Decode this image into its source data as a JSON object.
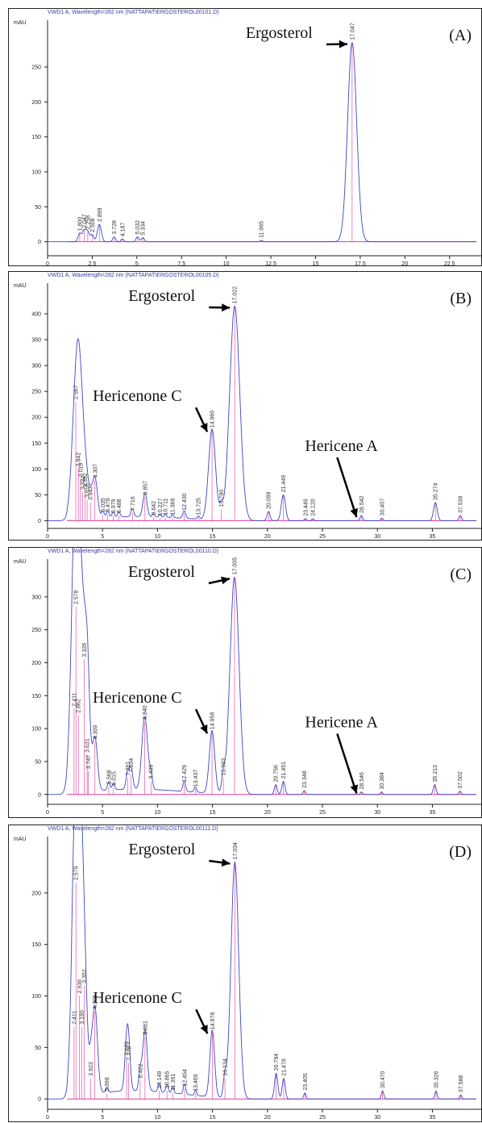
{
  "panels": [
    {
      "label": "(A)",
      "header": "VWD1 A, Wavelength=282 nm (NATTAPAT\\ERGOSTEROL00101.D)",
      "ylabel": "mAU",
      "xlim": [
        0,
        24
      ],
      "ylim": [
        -20,
        310
      ],
      "yticks": [
        0,
        50,
        100,
        150,
        200,
        250
      ],
      "xticks": [
        "0",
        "2.5",
        "5",
        "7.5",
        "10",
        "12.5",
        "15",
        "17.5",
        "20",
        "22.5"
      ],
      "xtick_values": [
        0,
        2.5,
        5,
        7.5,
        10,
        12.5,
        15,
        17.5,
        20,
        22.5
      ],
      "peaks": [
        {
          "x": 1.8,
          "h": 12,
          "label": "1.800"
        },
        {
          "x": 2.05,
          "h": 16,
          "label": "2.047"
        },
        {
          "x": 2.25,
          "h": 14,
          "label": "2.258"
        },
        {
          "x": 2.5,
          "h": 10,
          "label": "2.508"
        },
        {
          "x": 2.899,
          "h": 25,
          "label": "2.899"
        },
        {
          "x": 3.728,
          "h": 7,
          "label": "3.728"
        },
        {
          "x": 4.187,
          "h": 4,
          "label": "4.187"
        },
        {
          "x": 5.032,
          "h": 7,
          "label": "5.032"
        },
        {
          "x": 5.334,
          "h": 6,
          "label": "5.334"
        },
        {
          "x": 11.965,
          "h": 2,
          "label": "11.965"
        },
        {
          "x": 17.047,
          "h": 285,
          "label": "17.047"
        }
      ],
      "annotations": [
        {
          "text": "Ergosterol",
          "x": 17.047
        }
      ]
    },
    {
      "label": "(B)",
      "header": "VWD1 A, Wavelength=282 nm (NATTAPAT\\ERGOSTEROL00105.D)",
      "ylabel": "mAU",
      "xlim": [
        0,
        39
      ],
      "ylim": [
        -15,
        450
      ],
      "yticks": [
        0,
        50,
        100,
        150,
        200,
        250,
        300,
        350,
        400
      ],
      "xticks": [
        "0",
        "5",
        "10",
        "15",
        "20",
        "25",
        "30",
        "35"
      ],
      "xtick_values": [
        0,
        5,
        10,
        15,
        20,
        25,
        30,
        35
      ],
      "peaks": [
        {
          "x": 2.567,
          "h": 230,
          "label": "2.567"
        },
        {
          "x": 2.8,
          "h": 100,
          "label": "2.842"
        },
        {
          "x": 3.0,
          "h": 80,
          "label": "3.010"
        },
        {
          "x": 3.392,
          "h": 60,
          "label": "3.392"
        },
        {
          "x": 3.2,
          "h": 55,
          "label": "3.332"
        },
        {
          "x": 3.6,
          "h": 40,
          "label": "3.616"
        },
        {
          "x": 3.9,
          "h": 35,
          "label": "3.943"
        },
        {
          "x": 4.307,
          "h": 78,
          "label": "4.307"
        },
        {
          "x": 5.035,
          "h": 12,
          "label": "5.035"
        },
        {
          "x": 5.478,
          "h": 12,
          "label": "5.478"
        },
        {
          "x": 5.979,
          "h": 10,
          "label": "5.979"
        },
        {
          "x": 6.488,
          "h": 10,
          "label": "6.488"
        },
        {
          "x": 7.716,
          "h": 15,
          "label": "7.716"
        },
        {
          "x": 8.857,
          "h": 45,
          "label": "8.857"
        },
        {
          "x": 9.642,
          "h": 6,
          "label": "9.642"
        },
        {
          "x": 10.227,
          "h": 5,
          "label": "10.227"
        },
        {
          "x": 10.711,
          "h": 6,
          "label": "10.711"
        },
        {
          "x": 11.369,
          "h": 6,
          "label": "11.369"
        },
        {
          "x": 12.43,
          "h": 15,
          "label": "12.430"
        },
        {
          "x": 13.725,
          "h": 6,
          "label": "13.725"
        },
        {
          "x": 14.96,
          "h": 175,
          "label": "14.960"
        },
        {
          "x": 15.79,
          "h": 22,
          "label": "15.790"
        },
        {
          "x": 17.022,
          "h": 415,
          "label": "17.022"
        },
        {
          "x": 20.099,
          "h": 18,
          "label": "20.099"
        },
        {
          "x": 21.449,
          "h": 50,
          "label": "21.449"
        },
        {
          "x": 23.449,
          "h": 4,
          "label": "23.449"
        },
        {
          "x": 24.12,
          "h": 4,
          "label": "24.120"
        },
        {
          "x": 28.542,
          "h": 10,
          "label": "28.542"
        },
        {
          "x": 30.407,
          "h": 5,
          "label": "30.407"
        },
        {
          "x": 35.274,
          "h": 35,
          "label": "35.274"
        },
        {
          "x": 37.539,
          "h": 10,
          "label": "37.539"
        }
      ],
      "annotations": [
        {
          "text": "Ergosterol",
          "x": 17.022
        },
        {
          "text": "Hericenone C",
          "x": 14.96
        },
        {
          "text": "Hericene A",
          "x": 28.542
        }
      ]
    },
    {
      "label": "(C)",
      "header": "VWD1 A, Wavelength=282 nm (NATTAPAT\\ERGOSTEROL00110.D)",
      "ylabel": "mAU",
      "xlim": [
        0,
        39
      ],
      "ylim": [
        -15,
        350
      ],
      "yticks": [
        0,
        50,
        100,
        150,
        200,
        250,
        300
      ],
      "xticks": [
        "0",
        "5",
        "10",
        "15",
        "20",
        "25",
        "30",
        "35"
      ],
      "xtick_values": [
        0,
        5,
        10,
        15,
        20,
        25,
        30,
        35
      ],
      "peaks": [
        {
          "x": 2.578,
          "h": 285,
          "label": "2.578"
        },
        {
          "x": 2.411,
          "h": 130,
          "label": "2.411"
        },
        {
          "x": 2.8,
          "h": 120,
          "label": "2.862"
        },
        {
          "x": 3.326,
          "h": 205,
          "label": "3.326"
        },
        {
          "x": 3.6,
          "h": 60,
          "label": "3.631"
        },
        {
          "x": 3.7,
          "h": 35,
          "label": "3.747"
        },
        {
          "x": 4.309,
          "h": 80,
          "label": "4.309"
        },
        {
          "x": 5.568,
          "h": 12,
          "label": "5.568"
        },
        {
          "x": 6.0,
          "h": 10,
          "label": "6.015"
        },
        {
          "x": 7.291,
          "h": 25,
          "label": "7.291"
        },
        {
          "x": 7.604,
          "h": 30,
          "label": "7.604"
        },
        {
          "x": 8.84,
          "h": 110,
          "label": "8.840"
        },
        {
          "x": 9.4,
          "h": 20,
          "label": "9.439"
        },
        {
          "x": 12.429,
          "h": 15,
          "label": "12.429"
        },
        {
          "x": 13.437,
          "h": 8,
          "label": "13.437"
        },
        {
          "x": 14.958,
          "h": 95,
          "label": "14.958"
        },
        {
          "x": 15.993,
          "h": 25,
          "label": "15.993"
        },
        {
          "x": 17.005,
          "h": 330,
          "label": "17.005"
        },
        {
          "x": 20.756,
          "h": 15,
          "label": "20.756"
        },
        {
          "x": 21.451,
          "h": 20,
          "label": "21.451"
        },
        {
          "x": 23.348,
          "h": 6,
          "label": "23.348"
        },
        {
          "x": 28.546,
          "h": 4,
          "label": "28.546"
        },
        {
          "x": 30.384,
          "h": 4,
          "label": "30.384"
        },
        {
          "x": 35.213,
          "h": 15,
          "label": "35.213"
        },
        {
          "x": 37.502,
          "h": 5,
          "label": "37.502"
        }
      ],
      "annotations": [
        {
          "text": "Ergosterol",
          "x": 17.005
        },
        {
          "text": "Hericenone C",
          "x": 14.958
        },
        {
          "text": "Hericene A",
          "x": 28.546
        }
      ]
    },
    {
      "label": "(D)",
      "header": "VWD1 A, Wavelength=282 nm (NATTAPAT\\ERGOSTEROL00111.D)",
      "ylabel": "mAU",
      "xlim": [
        0,
        39
      ],
      "ylim": [
        -10,
        250
      ],
      "yticks": [
        0,
        50,
        100,
        150,
        200
      ],
      "xticks": [
        "0",
        "5",
        "10",
        "15",
        "20",
        "25",
        "30",
        "35"
      ],
      "xtick_values": [
        0,
        5,
        10,
        15,
        20,
        25,
        30,
        35
      ],
      "peaks": [
        {
          "x": 2.579,
          "h": 210,
          "label": "2.579"
        },
        {
          "x": 2.411,
          "h": 70,
          "label": "2.411"
        },
        {
          "x": 2.9,
          "h": 100,
          "label": "2.936"
        },
        {
          "x": 3.1,
          "h": 70,
          "label": "3.190"
        },
        {
          "x": 3.352,
          "h": 110,
          "label": "3.352"
        },
        {
          "x": 3.923,
          "h": 20,
          "label": "3.923"
        },
        {
          "x": 4.3,
          "h": 85,
          "label": "4.308"
        },
        {
          "x": 5.398,
          "h": 5,
          "label": "5.398"
        },
        {
          "x": 7.189,
          "h": 40,
          "label": "7.189"
        },
        {
          "x": 7.372,
          "h": 35,
          "label": "7.372"
        },
        {
          "x": 8.422,
          "h": 18,
          "label": "8.422"
        },
        {
          "x": 8.861,
          "h": 60,
          "label": "8.861"
        },
        {
          "x": 10.149,
          "h": 8,
          "label": "10.149"
        },
        {
          "x": 10.865,
          "h": 8,
          "label": "10.865"
        },
        {
          "x": 11.391,
          "h": 6,
          "label": "11.391"
        },
        {
          "x": 12.454,
          "h": 10,
          "label": "12.454"
        },
        {
          "x": 13.469,
          "h": 5,
          "label": "13.469"
        },
        {
          "x": 14.978,
          "h": 65,
          "label": "14.978"
        },
        {
          "x": 16.134,
          "h": 20,
          "label": "16.134"
        },
        {
          "x": 17.034,
          "h": 230,
          "label": "17.034"
        },
        {
          "x": 20.794,
          "h": 25,
          "label": "20.794"
        },
        {
          "x": 21.478,
          "h": 20,
          "label": "21.478"
        },
        {
          "x": 23.405,
          "h": 6,
          "label": "23.405"
        },
        {
          "x": 30.47,
          "h": 8,
          "label": "30.470"
        },
        {
          "x": 35.326,
          "h": 8,
          "label": "35.326"
        },
        {
          "x": 37.588,
          "h": 4,
          "label": "37.588"
        }
      ],
      "annotations": [
        {
          "text": "Ergosterol",
          "x": 17.034
        },
        {
          "text": "Hericenone C",
          "x": 14.978
        }
      ]
    }
  ],
  "chart_data": [
    {
      "type": "line",
      "title": "(A)",
      "ylabel": "mAU",
      "xlim": [
        0,
        24
      ],
      "ylim": [
        -20,
        310
      ],
      "series": [
        {
          "x": [
            1.8,
            2.047,
            2.258,
            2.508,
            2.899,
            3.728,
            4.187,
            5.032,
            5.334,
            11.965,
            17.047
          ],
          "y": [
            12,
            16,
            14,
            10,
            25,
            7,
            4,
            7,
            6,
            2,
            285
          ]
        }
      ]
    },
    {
      "type": "line",
      "title": "(B)",
      "ylabel": "mAU",
      "xlim": [
        0,
        39
      ],
      "ylim": [
        -15,
        450
      ],
      "series": [
        {
          "x": [
            2.567,
            4.307,
            8.857,
            12.43,
            14.96,
            15.79,
            17.022,
            20.099,
            21.449,
            28.542,
            30.407,
            35.274,
            37.539
          ],
          "y": [
            230,
            78,
            45,
            15,
            175,
            22,
            415,
            18,
            50,
            10,
            5,
            35,
            10
          ]
        }
      ]
    },
    {
      "type": "line",
      "title": "(C)",
      "ylabel": "mAU",
      "xlim": [
        0,
        39
      ],
      "ylim": [
        -15,
        350
      ],
      "series": [
        {
          "x": [
            2.578,
            3.326,
            4.309,
            8.84,
            12.429,
            14.958,
            15.993,
            17.005,
            20.756,
            21.451,
            35.213,
            37.502
          ],
          "y": [
            285,
            205,
            80,
            110,
            15,
            95,
            25,
            330,
            15,
            20,
            15,
            5
          ]
        }
      ]
    },
    {
      "type": "line",
      "title": "(D)",
      "ylabel": "mAU",
      "xlim": [
        0,
        39
      ],
      "ylim": [
        -10,
        250
      ],
      "series": [
        {
          "x": [
            2.579,
            3.352,
            4.308,
            7.189,
            8.861,
            14.978,
            16.134,
            17.034,
            20.794,
            21.478,
            30.47,
            35.326
          ],
          "y": [
            210,
            110,
            85,
            40,
            60,
            65,
            20,
            230,
            25,
            20,
            8,
            8
          ]
        }
      ]
    }
  ]
}
